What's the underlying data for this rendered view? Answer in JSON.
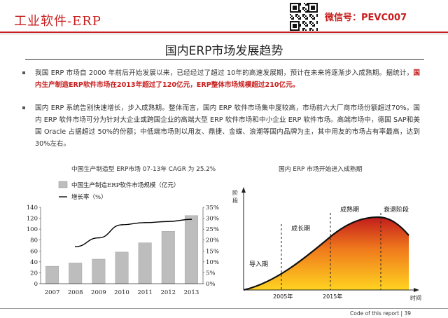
{
  "header": {
    "title": "工业软件-ERP",
    "wechat": "微信号：PEVC007"
  },
  "main_title": "国内ERP市场发展趋势",
  "bullets": [
    {
      "pre": "我国 ERP 市场自 2000 年前后开始发展以来，已经经过了超过 10年的高速发展期，预计在未来将逐渐步入成熟期。据统计，",
      "highlight": "国内生产制造ERP软件市场在2013年超过了120亿元，ERP整体市场规模超过210亿元。",
      "post": ""
    },
    {
      "pre": "国内 ERP 系统告别快速增长，步入成熟期。整体而言，国内 ERP 软件市场集中度较高，市场前六大厂商市场份额超过70%。国内 ERP 软件市场可分为针对大企业或跨国企业的高端大型 ERP 软件市场和中小企业 ERP 软件市场。高端市场中，德国 SAP和美国 Oracle 占据超过 50%的份额；中低端市场则以用友、鼎捷、金蝶、浪潮等国内品牌为主，其中用友的市场占有率最高，达到30%左右。",
      "highlight": "",
      "post": ""
    }
  ],
  "chart_caption": "中国生产制造型 ERP市场 07-13年 CAGR 为 25.2%",
  "chart_data": {
    "type": "bar",
    "categories": [
      "2007",
      "2008",
      "2009",
      "2010",
      "2011",
      "2012",
      "2013"
    ],
    "series": [
      {
        "name": "中国生产制造ERP软件市场规模（亿元）",
        "type": "bar",
        "axis": "left",
        "values": [
          32,
          38,
          45,
          58,
          75,
          96,
          125
        ]
      },
      {
        "name": "增长率（%）",
        "type": "line",
        "axis": "right",
        "values": [
          null,
          17,
          21,
          27,
          28,
          28.5,
          29.5
        ]
      }
    ],
    "y_left": {
      "min": 0,
      "max": 140,
      "ticks": [
        "0",
        "20",
        "40",
        "60",
        "80",
        "100",
        "120",
        "140"
      ]
    },
    "y_right": {
      "min": 0,
      "max": 35,
      "ticks": [
        "0%",
        "5%",
        "10%",
        "15%",
        "20%",
        "25%",
        "30%",
        "35%"
      ]
    },
    "legend_placement": "top-left",
    "colors": {
      "bar": "#bdbdbd",
      "line": "#000000"
    }
  },
  "diagram": {
    "caption": "国内 ERP 市场开始进入成熟期",
    "y_label": [
      "阶",
      "段"
    ],
    "x_label": "时间",
    "stages": [
      "导入期",
      "成长期",
      "成熟期",
      "衰退阶段"
    ],
    "milestones": [
      "2005年",
      "2015年"
    ],
    "colors": {
      "dark": "#c0181c",
      "mid": "#f07a1c",
      "light": "#ffd320"
    }
  },
  "footer": {
    "text": "Code of this report  |  39"
  }
}
